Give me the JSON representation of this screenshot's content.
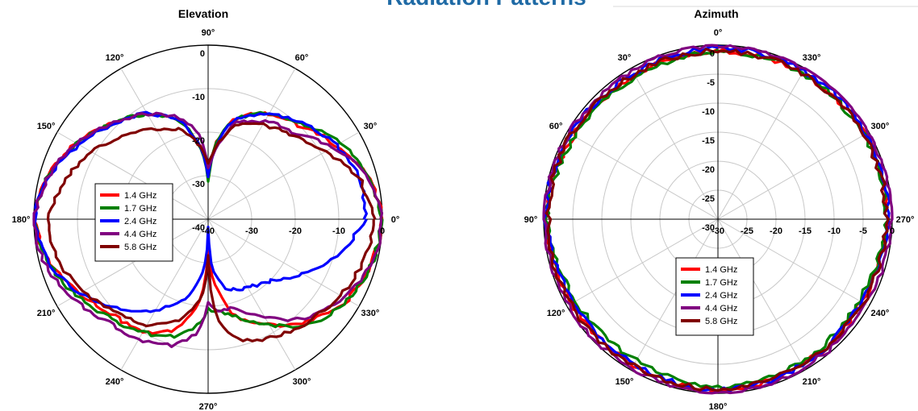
{
  "page_title": "Radiation Patterns",
  "colors": {
    "title": "#1f6aa5",
    "grid": "#c8c8c8",
    "header_line": "#d9d9d9",
    "1.4 GHz": "#ff0000",
    "1.7 GHz": "#008000",
    "2.4 GHz": "#0000ff",
    "4.4 GHz": "#800080",
    "5.8 GHz": "#800000"
  },
  "chart_data": [
    {
      "type": "polar",
      "title": "Elevation",
      "unit_note": "",
      "radial_range": [
        -40,
        0
      ],
      "radial_ticks": [
        0,
        -10,
        -20,
        -30,
        -40
      ],
      "radial_tick_labels": [
        "0",
        "-10",
        "-20",
        "-30",
        "-40"
      ],
      "angle_zero_direction": "east",
      "angle_direction": "counterclockwise",
      "angle_labels": [
        {
          "angle": 0,
          "label": "0°"
        },
        {
          "angle": 30,
          "label": "30°"
        },
        {
          "angle": 60,
          "label": "60°"
        },
        {
          "angle": 90,
          "label": "90°"
        },
        {
          "angle": 120,
          "label": "120°"
        },
        {
          "angle": 150,
          "label": "150°"
        },
        {
          "angle": 180,
          "label": "180°"
        },
        {
          "angle": 210,
          "label": "210°"
        },
        {
          "angle": 240,
          "label": "240°"
        },
        {
          "angle": 270,
          "label": "270°"
        },
        {
          "angle": 300,
          "label": "300°"
        },
        {
          "angle": 330,
          "label": "330°"
        }
      ],
      "legend_position": "left",
      "series": [
        {
          "name": "1.4 GHz",
          "angles": [
            0,
            15,
            30,
            45,
            60,
            75,
            85,
            88,
            90,
            92,
            95,
            105,
            120,
            135,
            150,
            165,
            180,
            195,
            210,
            225,
            240,
            255,
            265,
            268,
            270,
            272,
            275,
            285,
            300,
            315,
            330,
            345,
            360
          ],
          "values": [
            0,
            -2,
            -6,
            -10,
            -12,
            -16,
            -23,
            -28,
            -30,
            -28,
            -24,
            -17,
            -12,
            -9,
            -5,
            -2,
            0,
            -2,
            -6,
            -9,
            -10,
            -14,
            -22,
            -28,
            -33,
            -30,
            -26,
            -17,
            -12,
            -7,
            -3,
            -1,
            0
          ]
        },
        {
          "name": "1.7 GHz",
          "angles": [
            0,
            15,
            30,
            45,
            60,
            75,
            85,
            88,
            90,
            92,
            95,
            105,
            120,
            135,
            150,
            165,
            180,
            195,
            210,
            225,
            240,
            255,
            265,
            268,
            270,
            272,
            275,
            285,
            300,
            315,
            330,
            345,
            360
          ],
          "values": [
            0,
            -2,
            -5,
            -9,
            -12,
            -16,
            -23,
            -29,
            -31,
            -28,
            -24,
            -17,
            -12,
            -9,
            -5,
            -2,
            0,
            -2,
            -5,
            -8,
            -10,
            -12,
            -16,
            -18,
            -20,
            -19,
            -19,
            -17,
            -12,
            -6,
            -3,
            -1,
            0
          ]
        },
        {
          "name": "2.4 GHz",
          "angles": [
            0,
            15,
            30,
            45,
            60,
            75,
            85,
            88,
            90,
            92,
            95,
            105,
            120,
            135,
            150,
            165,
            180,
            195,
            210,
            225,
            240,
            255,
            265,
            268,
            270,
            272,
            275,
            285,
            300,
            315,
            330,
            345,
            360
          ],
          "values": [
            -4,
            -4,
            -6,
            -9,
            -12,
            -16,
            -24,
            -28,
            -30,
            -28,
            -24,
            -17,
            -12,
            -9,
            -6,
            -2,
            0,
            -2,
            -6,
            -11,
            -16,
            -21,
            -28,
            -33,
            -38,
            -34,
            -28,
            -23,
            -22,
            -20,
            -15,
            -9,
            -4
          ]
        },
        {
          "name": "4.4 GHz",
          "angles": [
            0,
            15,
            30,
            45,
            60,
            75,
            85,
            88,
            90,
            92,
            95,
            105,
            120,
            135,
            150,
            165,
            180,
            195,
            210,
            225,
            240,
            255,
            265,
            268,
            270,
            272,
            275,
            285,
            300,
            315,
            330,
            345,
            360
          ],
          "values": [
            0,
            -2,
            -7,
            -12,
            -14,
            -17,
            -25,
            -27,
            -28,
            -25,
            -21,
            -16,
            -12,
            -9,
            -5,
            -2,
            0,
            -1,
            -4,
            -7,
            -8,
            -10,
            -14,
            -18,
            -21,
            -20,
            -19,
            -19,
            -14,
            -8,
            -4,
            -1,
            0
          ]
        },
        {
          "name": "5.8 GHz",
          "angles": [
            0,
            15,
            30,
            45,
            60,
            75,
            85,
            88,
            90,
            92,
            95,
            105,
            120,
            135,
            150,
            165,
            180,
            195,
            210,
            225,
            240,
            255,
            265,
            268,
            270,
            272,
            275,
            285,
            300,
            315,
            330,
            345,
            360
          ],
          "values": [
            -2,
            -4,
            -9,
            -13,
            -15,
            -18,
            -24,
            -26,
            -27,
            -26,
            -24,
            -19,
            -16,
            -13,
            -9,
            -6,
            -3,
            -4,
            -7,
            -10,
            -12,
            -16,
            -22,
            -26,
            -32,
            -24,
            -17,
            -11,
            -9,
            -7,
            -5,
            -3,
            -2
          ]
        }
      ]
    },
    {
      "type": "polar",
      "title": "Azimuth",
      "radial_range": [
        -30,
        0
      ],
      "radial_ticks": [
        0,
        -5,
        -10,
        -15,
        -20,
        -25,
        -30
      ],
      "radial_tick_labels": [
        "0",
        "-5",
        "-10",
        "-15",
        "-20",
        "-25",
        "-30"
      ],
      "angle_zero_direction": "north",
      "angle_direction": "counterclockwise",
      "angle_labels": [
        {
          "angle": 0,
          "label": "0°"
        },
        {
          "angle": 30,
          "label": "30°"
        },
        {
          "angle": 60,
          "label": "60°"
        },
        {
          "angle": 90,
          "label": "90°"
        },
        {
          "angle": 120,
          "label": "120°"
        },
        {
          "angle": 150,
          "label": "150°"
        },
        {
          "angle": 180,
          "label": "180°"
        },
        {
          "angle": 210,
          "label": "210°"
        },
        {
          "angle": 240,
          "label": "240°"
        },
        {
          "angle": 270,
          "label": "270°"
        },
        {
          "angle": 300,
          "label": "300°"
        },
        {
          "angle": 330,
          "label": "330°"
        }
      ],
      "legend_position": "bottom-center",
      "series": [
        {
          "name": "1.4 GHz",
          "angles": [
            0,
            30,
            60,
            90,
            120,
            150,
            180,
            210,
            240,
            270,
            300,
            330,
            360
          ],
          "values": [
            -1,
            -1.5,
            -1.2,
            -0.5,
            -1,
            -1,
            -0.5,
            -1,
            -1.5,
            -0.8,
            -0.8,
            -1,
            -1
          ]
        },
        {
          "name": "1.7 GHz",
          "angles": [
            0,
            30,
            60,
            90,
            120,
            150,
            180,
            210,
            240,
            270,
            300,
            330,
            360
          ],
          "values": [
            -1,
            -2,
            -1.5,
            -0.5,
            -1.8,
            -2,
            -1,
            -1.5,
            -2,
            -1,
            -1,
            -1,
            -1
          ]
        },
        {
          "name": "2.4 GHz",
          "angles": [
            0,
            30,
            60,
            90,
            120,
            150,
            180,
            210,
            240,
            270,
            300,
            330,
            360
          ],
          "values": [
            -0.5,
            -1,
            -0.8,
            -0.3,
            -1.5,
            -1.2,
            -0.5,
            -1,
            -1.5,
            -0.5,
            -0.5,
            -0.5,
            -0.5
          ]
        },
        {
          "name": "4.4 GHz",
          "angles": [
            0,
            30,
            60,
            90,
            120,
            150,
            180,
            210,
            240,
            270,
            300,
            330,
            360
          ],
          "values": [
            0,
            -0.5,
            -0.5,
            0,
            -0.2,
            -0.5,
            0,
            -0.5,
            -0.5,
            0,
            0,
            0,
            0
          ]
        },
        {
          "name": "5.8 GHz",
          "angles": [
            0,
            30,
            60,
            90,
            120,
            150,
            180,
            210,
            240,
            270,
            300,
            330,
            360
          ],
          "values": [
            -1,
            -1.2,
            -0.8,
            -0.8,
            -0.8,
            -0.8,
            -0.8,
            -1.2,
            -1.2,
            -1,
            -1,
            -1,
            -1
          ]
        }
      ]
    }
  ]
}
